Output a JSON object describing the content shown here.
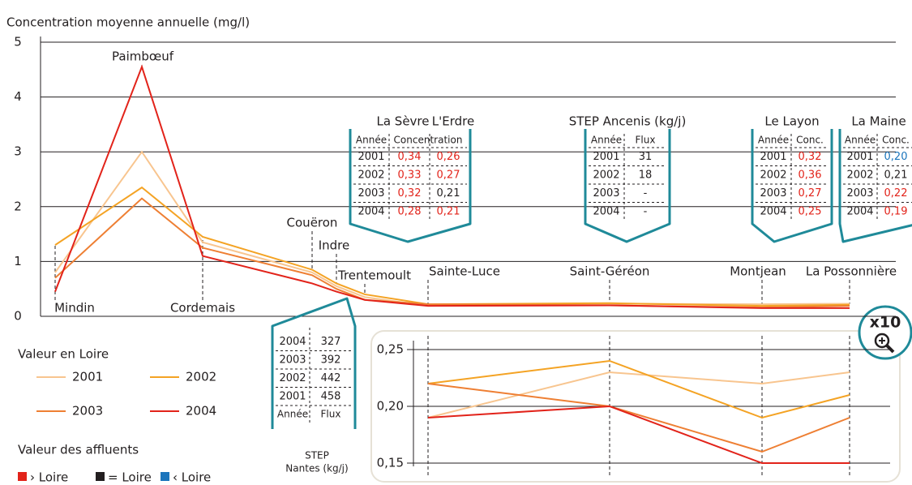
{
  "chart_data": [
    {
      "type": "line",
      "y_label": "Concentration moyenne annuelle (mg/l)",
      "categories": [
        "Mindin",
        "Paimbœuf",
        "Cordemais",
        "Couëron",
        "Indre",
        "Trentemoult",
        "Sainte-Luce",
        "Saint-Géréon",
        "Montjean",
        "La Possonnière"
      ],
      "series": [
        {
          "name": "2001",
          "color": "#f8c58f",
          "values": [
            0.8,
            3.0,
            1.35,
            0.8,
            0.55,
            0.35,
            0.19,
            0.23,
            0.22,
            0.23
          ]
        },
        {
          "name": "2002",
          "color": "#f4a324",
          "values": [
            1.3,
            2.35,
            1.45,
            0.85,
            0.6,
            0.4,
            0.22,
            0.24,
            0.19,
            0.21
          ]
        },
        {
          "name": "2003",
          "color": "#ee7f33",
          "values": [
            0.7,
            2.15,
            1.25,
            0.75,
            0.5,
            0.3,
            0.22,
            0.2,
            0.16,
            0.19
          ]
        },
        {
          "name": "2004",
          "color": "#e2231a",
          "values": [
            0.45,
            4.55,
            1.1,
            0.6,
            0.45,
            0.3,
            0.19,
            0.2,
            0.15,
            0.15
          ]
        }
      ],
      "ylim": [
        0,
        5
      ],
      "yticks": [
        0,
        1,
        2,
        3,
        4,
        5
      ],
      "grid": true,
      "legend_title": "Valeur en Loire"
    },
    {
      "type": "line",
      "annotation": "x10",
      "series": [
        {
          "color": "#f8c58f",
          "values": [
            0.19,
            0.23,
            0.22,
            0.23
          ]
        },
        {
          "color": "#f4a324",
          "values": [
            0.22,
            0.24,
            0.19,
            0.21
          ]
        },
        {
          "color": "#ee7f33",
          "values": [
            0.22,
            0.2,
            0.16,
            0.19
          ]
        },
        {
          "color": "#e2231a",
          "values": [
            0.19,
            0.2,
            0.15,
            0.15
          ]
        }
      ],
      "ylim": [
        0.135,
        0.265
      ],
      "yticks": [
        {
          "value": 0.15,
          "label": "0,15"
        },
        {
          "value": 0.2,
          "label": "0,20"
        },
        {
          "value": 0.25,
          "label": "0,25"
        }
      ],
      "grid": true
    }
  ],
  "affluent_legend": {
    "title": "Valeur des affluents",
    "items": [
      {
        "label": "› Loire",
        "color": "#e2231a"
      },
      {
        "label": "= Loire",
        "color": "#231f20"
      },
      {
        "label": "‹ Loire",
        "color": "#1b75bc"
      }
    ]
  },
  "tables": [
    {
      "titles": [
        "La Sèvre",
        "L'Erdre"
      ],
      "header": [
        "Année",
        "Concentration"
      ],
      "rows": [
        {
          "year": "2001",
          "cells": [
            {
              "text": "0,34",
              "color": "#e2231a"
            },
            {
              "text": "0,26",
              "color": "#e2231a"
            }
          ]
        },
        {
          "year": "2002",
          "cells": [
            {
              "text": "0,33",
              "color": "#e2231a"
            },
            {
              "text": "0,27",
              "color": "#e2231a"
            }
          ]
        },
        {
          "year": "2003",
          "cells": [
            {
              "text": "0,32",
              "color": "#e2231a"
            },
            {
              "text": "0,21",
              "color": "#231f20"
            }
          ]
        },
        {
          "year": "2004",
          "cells": [
            {
              "text": "0,28",
              "color": "#e2231a"
            },
            {
              "text": "0,21",
              "color": "#e2231a"
            }
          ]
        }
      ]
    },
    {
      "titles": [
        "STEP Ancenis (kg/j)"
      ],
      "header": [
        "Année",
        "Flux"
      ],
      "rows": [
        {
          "year": "2001",
          "cells": [
            {
              "text": "31",
              "color": "#231f20"
            }
          ]
        },
        {
          "year": "2002",
          "cells": [
            {
              "text": "18",
              "color": "#231f20"
            }
          ]
        },
        {
          "year": "2003",
          "cells": [
            {
              "text": "-",
              "color": "#231f20"
            }
          ]
        },
        {
          "year": "2004",
          "cells": [
            {
              "text": "-",
              "color": "#231f20"
            }
          ]
        }
      ]
    },
    {
      "titles": [
        "Le Layon"
      ],
      "header": [
        "Année",
        "Conc."
      ],
      "rows": [
        {
          "year": "2001",
          "cells": [
            {
              "text": "0,32",
              "color": "#e2231a"
            }
          ]
        },
        {
          "year": "2002",
          "cells": [
            {
              "text": "0,36",
              "color": "#e2231a"
            }
          ]
        },
        {
          "year": "2003",
          "cells": [
            {
              "text": "0,27",
              "color": "#e2231a"
            }
          ]
        },
        {
          "year": "2004",
          "cells": [
            {
              "text": "0,25",
              "color": "#e2231a"
            }
          ]
        }
      ]
    },
    {
      "titles": [
        "La Maine"
      ],
      "header": [
        "Année",
        "Conc."
      ],
      "rows": [
        {
          "year": "2001",
          "cells": [
            {
              "text": "0,20",
              "color": "#1b75bc"
            }
          ]
        },
        {
          "year": "2002",
          "cells": [
            {
              "text": "0,21",
              "color": "#231f20"
            }
          ]
        },
        {
          "year": "2003",
          "cells": [
            {
              "text": "0,22",
              "color": "#e2231a"
            }
          ]
        },
        {
          "year": "2004",
          "cells": [
            {
              "text": "0,19",
              "color": "#e2231a"
            }
          ]
        }
      ]
    },
    {
      "titles": [
        "STEP",
        "Nantes (kg/j)"
      ],
      "header": [
        "Année",
        "Flux"
      ],
      "rows": [
        {
          "year": "2004",
          "cells": [
            {
              "text": "327",
              "color": "#231f20"
            }
          ]
        },
        {
          "year": "2003",
          "cells": [
            {
              "text": "392",
              "color": "#231f20"
            }
          ]
        },
        {
          "year": "2002",
          "cells": [
            {
              "text": "442",
              "color": "#231f20"
            }
          ]
        },
        {
          "year": "2001",
          "cells": [
            {
              "text": "458",
              "color": "#231f20"
            }
          ]
        }
      ]
    }
  ]
}
